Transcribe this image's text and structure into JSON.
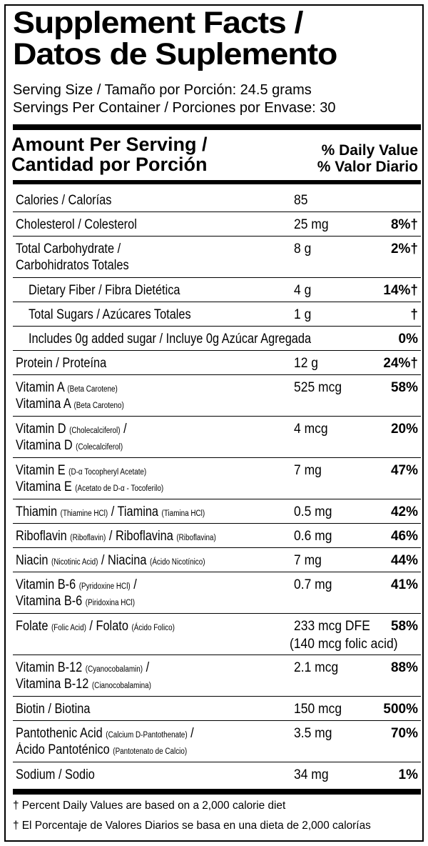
{
  "title": {
    "line1": "Supplement Facts /",
    "line2": "Datos de Suplemento"
  },
  "serving": {
    "size": "Serving Size / Tamaño por Porción: 24.5 grams",
    "per_container": "Servings Per Container / Porciones por Envase: 30"
  },
  "header": {
    "amount_line1": "Amount Per Serving /",
    "amount_line2": "Cantidad por Porción",
    "dv_line1": "% Daily Value",
    "dv_line2": "% Valor Diario"
  },
  "rows": [
    {
      "name": "Calories / Calorías",
      "amount": "85",
      "dv": ""
    },
    {
      "name": "Cholesterol / Colesterol",
      "amount": "25 mg",
      "dv": "8%†"
    },
    {
      "name": "Total Carbohydrate /",
      "name2": "Carbohidratos Totales",
      "amount": "8 g",
      "dv": "2%†"
    },
    {
      "name": "Dietary Fiber / Fibra Dietética",
      "amount": "4 g",
      "dv": "14%†"
    },
    {
      "name": "Total Sugars / Azúcares Totales",
      "amount": "1 g",
      "dv": "†"
    },
    {
      "name": "Includes 0g added sugar / Incluye 0g Azúcar Agregada",
      "amount": "",
      "dv": "0%"
    },
    {
      "name": "Protein / Proteína",
      "amount": "12 g",
      "dv": "24%†"
    },
    {
      "name": "Vitamin A",
      "sub": "(Beta Carotene)",
      "name2": "Vitamina A",
      "sub2": "(Beta Caroteno)",
      "amount": "525 mcg",
      "dv": "58%"
    },
    {
      "name": "Vitamin D",
      "sub": "(Cholecalciferol)",
      "tail": " /",
      "name2": "Vitamina D",
      "sub2": "(Colecalciferol)",
      "amount": "4 mcg",
      "dv": "20%"
    },
    {
      "name": "Vitamin E",
      "sub": "(D-α Tocopheryl Acetate)",
      "name2": "Vitamina E",
      "sub2": "(Acetato de D-α - Tocoferilo)",
      "amount": "7 mg",
      "dv": "47%"
    },
    {
      "name": "Thiamin",
      "sub": "(Thiamine HCl)",
      "mid": " / Tiamina",
      "sub_b": "(Tiamina HCl)",
      "amount": "0.5 mg",
      "dv": "42%"
    },
    {
      "name": "Riboflavin",
      "sub": "(Riboflavin)",
      "mid": " / Riboflavina",
      "sub_b": "(Riboflavina)",
      "amount": "0.6 mg",
      "dv": "46%"
    },
    {
      "name": "Niacin",
      "sub": "(Nicotinic Acid)",
      "mid": " / Niacina",
      "sub_b": "(Ácido Nicotínico)",
      "amount": "7 mg",
      "dv": "44%"
    },
    {
      "name": "Vitamin B-6",
      "sub": "(Pyridoxine HCl)",
      "tail": " /",
      "name2": "Vitamina B-6",
      "sub2": "(Piridoxina HCl)",
      "amount": "0.7 mg",
      "dv": "41%"
    },
    {
      "name": "Folate",
      "sub": "(Folic Acid)",
      "mid": " / Folato",
      "sub_b": "(Ácido Folico)",
      "amount": "233 mcg DFE",
      "amount2": "(140 mcg folic acid)",
      "dv": "58%"
    },
    {
      "name": "Vitamin B-12",
      "sub": "(Cyanocobalamin)",
      "tail": " /",
      "name2": "Vitamina B-12",
      "sub2": "(Cianocobalamina)",
      "amount": "2.1 mcg",
      "dv": "88%"
    },
    {
      "name": "Biotin / Biotina",
      "amount": "150 mcg",
      "dv": "500%"
    },
    {
      "name": "Pantothenic Acid",
      "sub": "(Calcium D-Pantothenate)",
      "tail": " /",
      "name2": "Ácido Pantoténico",
      "sub2": "(Pantotenato de Calcio)",
      "amount": "3.5 mg",
      "dv": "70%"
    },
    {
      "name": "Sodium / Sodio",
      "amount": "34 mg",
      "dv": "1%"
    }
  ],
  "footnotes": {
    "en": "† Percent Daily Values are based on a 2,000 calorie diet",
    "es": "† El Porcentaje de Valores Diarios se basa en una dieta de 2,000 calorías"
  }
}
